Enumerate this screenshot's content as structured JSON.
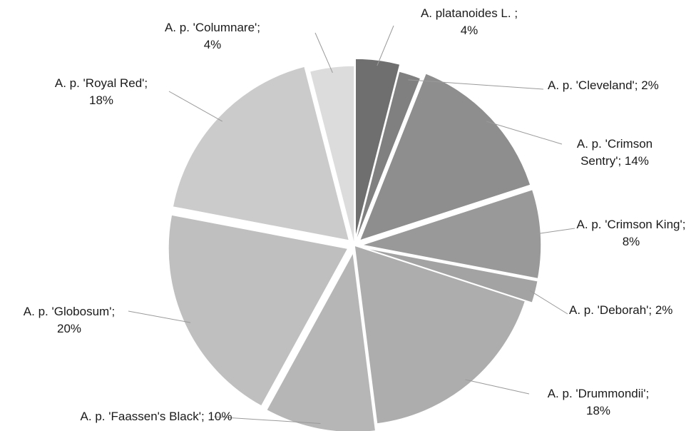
{
  "chart_data": {
    "type": "pie",
    "title": "",
    "legend": "none",
    "data_labels": "category; percent",
    "slices": [
      {
        "label_lines": [
          "A. platanoides L. ;",
          "4%"
        ],
        "category": "A. platanoides L.",
        "value": 4,
        "color": "#6f6f6f",
        "exploded": true
      },
      {
        "label_lines": [
          "A. p. 'Cleveland'; 2%"
        ],
        "category": "A. p. 'Cleveland'",
        "value": 2,
        "color": "#808080",
        "exploded": false
      },
      {
        "label_lines": [
          "A. p. 'Crimson",
          "Sentry'; 14%"
        ],
        "category": "A. p. 'Crimson Sentry'",
        "value": 14,
        "color": "#8e8e8e",
        "exploded": true
      },
      {
        "label_lines": [
          "A. p. 'Crimson King';",
          "8%"
        ],
        "category": "A. p. 'Crimson King'",
        "value": 8,
        "color": "#999999",
        "exploded": true
      },
      {
        "label_lines": [
          "A. p. 'Deborah'; 2%"
        ],
        "category": "A. p. 'Deborah'",
        "value": 2,
        "color": "#a3a3a3",
        "exploded": true
      },
      {
        "label_lines": [
          "A. p. 'Drummondii';",
          "18%"
        ],
        "category": "A. p. 'Drummondii'",
        "value": 18,
        "color": "#adadad",
        "exploded": false
      },
      {
        "label_lines": [
          "A. p. 'Faassen's Black'; 10%"
        ],
        "category": "A. p. 'Faassen's Black'",
        "value": 10,
        "color": "#b6b6b6",
        "exploded": true
      },
      {
        "label_lines": [
          "A. p. 'Globosum';",
          "20%"
        ],
        "category": "A. p. 'Globosum'",
        "value": 20,
        "color": "#bfbfbf",
        "exploded": true
      },
      {
        "label_lines": [
          "A. p. 'Royal Red';",
          "18%"
        ],
        "category": "A. p. 'Royal Red'",
        "value": 18,
        "color": "#cbcbcb",
        "exploded": true
      },
      {
        "label_lines": [
          "A. p. 'Columnare';",
          "4%"
        ],
        "category": "A. p. 'Columnare'",
        "value": 4,
        "color": "#dcdcdc",
        "exploded": false
      }
    ]
  }
}
